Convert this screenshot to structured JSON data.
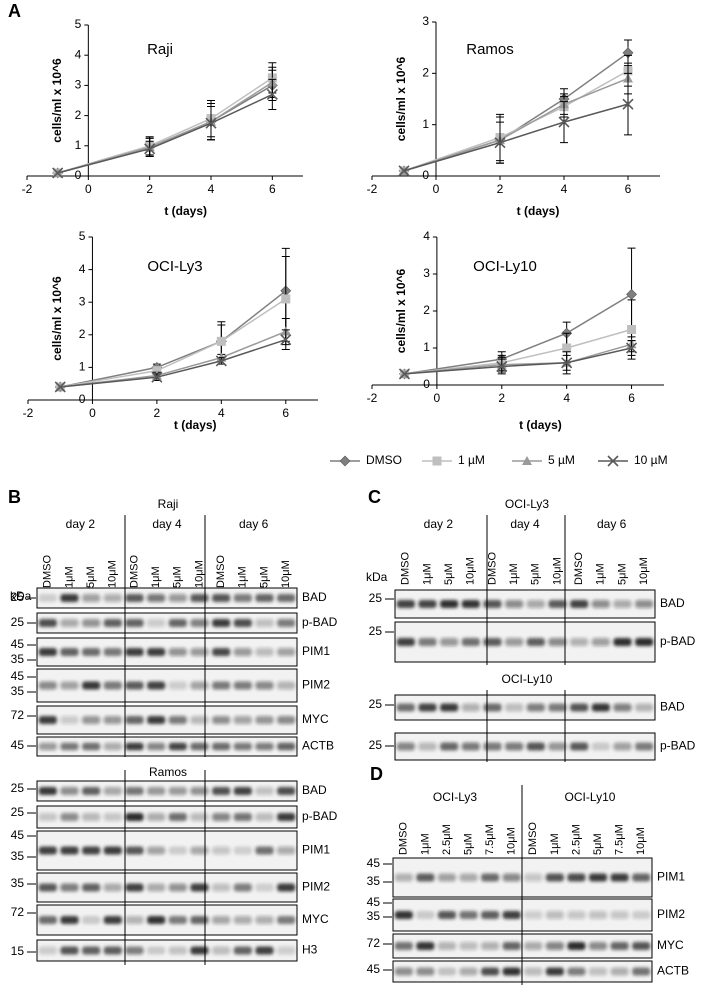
{
  "panel_labels": [
    "A",
    "B",
    "C",
    "D"
  ],
  "chart_data": [
    {
      "type": "line",
      "title": "Raji",
      "x_label": "t (days)",
      "y_label": "cells/ml x 10^6",
      "x": [
        -1,
        2,
        4,
        6
      ],
      "xlim": [
        -2,
        7
      ],
      "xticks": [
        -2,
        0,
        2,
        4,
        6
      ],
      "ylim": [
        0,
        5
      ],
      "yticks": [
        0,
        1,
        2,
        3,
        4,
        5
      ],
      "legend": "below",
      "series": [
        {
          "name": "DMSO",
          "color": "#7f7f7f",
          "marker": "diamond",
          "values": [
            0.1,
            0.95,
            1.8,
            3.0
          ],
          "errors": [
            null,
            0.3,
            0.6,
            0.5
          ]
        },
        {
          "name": "1 µM",
          "color": "#bfbfbf",
          "marker": "square",
          "values": [
            0.1,
            1.0,
            1.9,
            3.25
          ],
          "errors": [
            null,
            0.3,
            0.6,
            0.5
          ]
        },
        {
          "name": "5 µM",
          "color": "#9a9a9a",
          "marker": "triangle",
          "values": [
            0.1,
            0.95,
            1.8,
            3.1
          ],
          "errors": [
            null,
            0.3,
            0.6,
            0.5
          ]
        },
        {
          "name": "10 µM",
          "color": "#595959",
          "marker": "cross",
          "values": [
            0.1,
            0.9,
            1.75,
            2.7
          ],
          "errors": [
            null,
            0.25,
            0.55,
            0.5
          ]
        }
      ]
    },
    {
      "type": "line",
      "title": "Ramos",
      "x_label": "t (days)",
      "y_label": "cells/ml x 10^6",
      "x": [
        -1,
        2,
        4,
        6
      ],
      "xlim": [
        -2,
        7
      ],
      "xticks": [
        -2,
        0,
        2,
        4,
        6
      ],
      "ylim": [
        0,
        3
      ],
      "yticks": [
        0,
        1,
        2,
        3
      ],
      "series": [
        {
          "name": "DMSO",
          "color": "#7f7f7f",
          "marker": "diamond",
          "values": [
            0.1,
            0.7,
            1.5,
            2.4
          ],
          "errors": [
            null,
            0.45,
            0.2,
            0.25
          ]
        },
        {
          "name": "1 µM",
          "color": "#bfbfbf",
          "marker": "square",
          "values": [
            0.1,
            0.75,
            1.35,
            2.05
          ],
          "errors": [
            null,
            0.45,
            0.2,
            0.3
          ]
        },
        {
          "name": "5 µM",
          "color": "#9a9a9a",
          "marker": "triangle",
          "values": [
            0.1,
            0.7,
            1.4,
            1.9
          ],
          "errors": [
            null,
            0.45,
            0.2,
            0.3
          ]
        },
        {
          "name": "10 µM",
          "color": "#595959",
          "marker": "cross",
          "values": [
            0.1,
            0.65,
            1.05,
            1.4
          ],
          "errors": [
            null,
            0.4,
            0.4,
            0.6
          ]
        }
      ]
    },
    {
      "type": "line",
      "title": "OCI-Ly3",
      "x_label": "t (days)",
      "y_label": "cells/ml x 10^6",
      "x": [
        -1,
        2,
        4,
        6
      ],
      "xlim": [
        -2,
        7
      ],
      "xticks": [
        -2,
        0,
        2,
        4,
        6
      ],
      "ylim": [
        0,
        5
      ],
      "yticks": [
        0,
        1,
        2,
        3,
        4,
        5
      ],
      "series": [
        {
          "name": "DMSO",
          "color": "#7f7f7f",
          "marker": "diamond",
          "values": [
            0.4,
            1.0,
            1.8,
            3.35
          ],
          "errors": [
            null,
            0.1,
            0.5,
            1.3
          ]
        },
        {
          "name": "1 µM",
          "color": "#bfbfbf",
          "marker": "square",
          "values": [
            0.4,
            0.9,
            1.8,
            3.1
          ],
          "errors": [
            null,
            0.1,
            0.6,
            1.3
          ]
        },
        {
          "name": "5 µM",
          "color": "#9a9a9a",
          "marker": "triangle",
          "values": [
            0.4,
            0.75,
            1.3,
            2.1
          ],
          "errors": [
            null,
            0.1,
            0.1,
            0.4
          ]
        },
        {
          "name": "10 µM",
          "color": "#595959",
          "marker": "cross",
          "values": [
            0.4,
            0.7,
            1.2,
            1.85
          ],
          "errors": [
            null,
            0.1,
            0.1,
            0.3
          ]
        }
      ]
    },
    {
      "type": "line",
      "title": "OCI-Ly10",
      "x_label": "t (days)",
      "y_label": "cells/ml x 10^6",
      "x": [
        -1,
        2,
        4,
        6
      ],
      "xlim": [
        -2,
        7
      ],
      "xticks": [
        -2,
        0,
        2,
        4,
        6
      ],
      "ylim": [
        0,
        4
      ],
      "yticks": [
        0,
        1,
        2,
        3,
        4
      ],
      "series": [
        {
          "name": "DMSO",
          "color": "#7f7f7f",
          "marker": "diamond",
          "values": [
            0.3,
            0.7,
            1.4,
            2.45
          ],
          "errors": [
            null,
            0.2,
            0.3,
            1.25
          ]
        },
        {
          "name": "1 µM",
          "color": "#bfbfbf",
          "marker": "square",
          "values": [
            0.3,
            0.6,
            1.0,
            1.5
          ],
          "errors": [
            null,
            0.2,
            0.4,
            0.8
          ]
        },
        {
          "name": "5 µM",
          "color": "#9a9a9a",
          "marker": "triangle",
          "values": [
            0.3,
            0.55,
            0.6,
            1.1
          ],
          "errors": [
            null,
            0.2,
            0.3,
            0.2
          ]
        },
        {
          "name": "10 µM",
          "color": "#595959",
          "marker": "cross",
          "values": [
            0.3,
            0.5,
            0.6,
            1.0
          ],
          "errors": [
            null,
            0.2,
            0.2,
            0.2
          ]
        }
      ]
    }
  ],
  "blots": [
    {
      "title": "Raji",
      "kda": "kDa",
      "days": [
        {
          "label": "day 2",
          "lanes": [
            "DMSO",
            "1μM",
            "5μM",
            "10μM"
          ]
        },
        {
          "label": "day 4",
          "lanes": [
            "DMSO",
            "1μM",
            "5μM",
            "10μM"
          ]
        },
        {
          "label": "day 6",
          "lanes": [
            "DMSO",
            "1μM",
            "5μM",
            "10μM"
          ]
        }
      ],
      "rows": [
        {
          "markers": [
            25
          ],
          "protein": "BAD"
        },
        {
          "markers": [
            25
          ],
          "protein": "p-BAD"
        },
        {
          "markers": [
            45,
            35
          ],
          "protein": "PIM1"
        },
        {
          "markers": [
            45,
            35
          ],
          "protein": "PIM2"
        },
        {
          "markers": [
            72
          ],
          "protein": "MYC"
        },
        {
          "markers": [
            45
          ],
          "protein": "ACTB"
        }
      ]
    },
    {
      "title": "Ramos",
      "rows": [
        {
          "markers": [
            25
          ],
          "protein": "BAD"
        },
        {
          "markers": [
            25
          ],
          "protein": "p-BAD"
        },
        {
          "markers": [
            45,
            35
          ],
          "protein": "PIM1"
        },
        {
          "markers": [
            35
          ],
          "protein": "PIM2"
        },
        {
          "markers": [
            72
          ],
          "protein": "MYC"
        },
        {
          "markers": [
            15
          ],
          "protein": "H3"
        }
      ]
    },
    {
      "title": "OCI-Ly3",
      "kda": "kDa",
      "days": [
        {
          "label": "day 2",
          "lanes": [
            "DMSO",
            "1μM",
            "5μM",
            "10μM"
          ]
        },
        {
          "label": "day 4",
          "lanes": [
            "DMSO",
            "1μM",
            "5μM",
            "10μM"
          ]
        },
        {
          "label": "day 6",
          "lanes": [
            "DMSO",
            "1μM",
            "5μM",
            "10μM"
          ]
        }
      ],
      "rows": [
        {
          "markers": [
            25
          ],
          "protein": "BAD"
        },
        {
          "markers": [
            25
          ],
          "protein": "p-BAD"
        }
      ]
    },
    {
      "title": "OCI-Ly10",
      "rows": [
        {
          "markers": [
            25
          ],
          "protein": "BAD"
        },
        {
          "markers": [
            25
          ],
          "protein": "p-BAD"
        }
      ]
    },
    {
      "groups": [
        {
          "title": "OCI-Ly3",
          "lanes": [
            "DMSO",
            "1μM",
            "2.5μM",
            "5μM",
            "7.5μM",
            "10μM"
          ]
        },
        {
          "title": "OCI-Ly10",
          "lanes": [
            "DMSO",
            "1μM",
            "2.5μM",
            "5μM",
            "7.5μM",
            "10μM"
          ]
        }
      ],
      "rows": [
        {
          "markers": [
            45,
            35
          ],
          "protein": "PIM1"
        },
        {
          "markers": [
            45,
            35
          ],
          "protein": "PIM2"
        },
        {
          "markers": [
            72
          ],
          "protein": "MYC"
        },
        {
          "markers": [
            45
          ],
          "protein": "ACTB"
        }
      ]
    }
  ]
}
